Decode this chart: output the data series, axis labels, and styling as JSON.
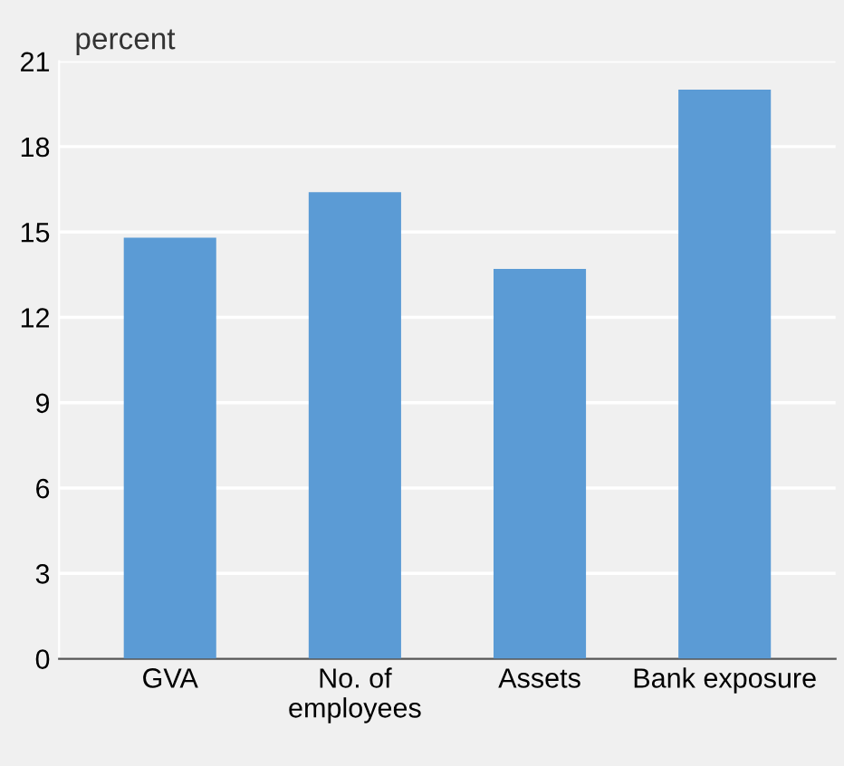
{
  "chart_data": {
    "type": "bar",
    "ylabel": "percent",
    "categories": [
      "GVA",
      "No. of\nemployees",
      "Assets",
      "Bank exposure"
    ],
    "values": [
      14.8,
      16.4,
      13.7,
      20.0
    ],
    "color": "#5b9bd5",
    "ylim": [
      0,
      21
    ],
    "yticks": [
      0,
      3,
      6,
      9,
      12,
      15,
      18,
      21
    ],
    "grid": "y",
    "legend": false
  }
}
